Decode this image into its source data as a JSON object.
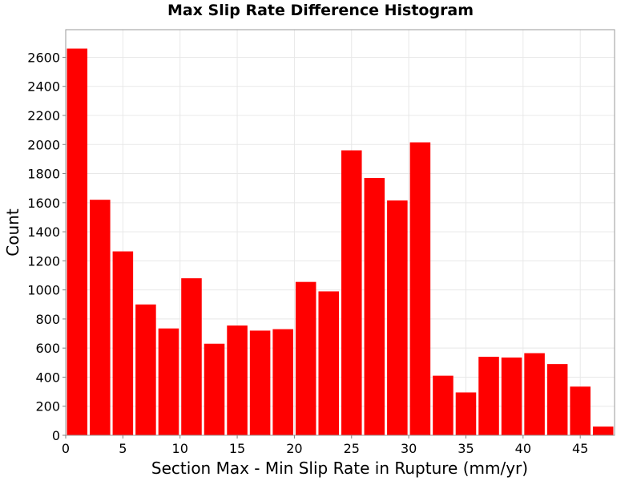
{
  "chart_data": {
    "type": "bar",
    "title": "Max Slip Rate Difference Histogram",
    "xlabel": "Section Max - Min Slip Rate in Rupture (mm/yr)",
    "ylabel": "Count",
    "xlim": [
      0,
      48
    ],
    "ylim": [
      0,
      2790
    ],
    "xticks": [
      0,
      5,
      10,
      15,
      20,
      25,
      30,
      35,
      40,
      45
    ],
    "yticks": [
      0,
      200,
      400,
      600,
      800,
      1000,
      1200,
      1400,
      1600,
      1800,
      2000,
      2200,
      2400,
      2600
    ],
    "bin_width": 2,
    "bins": [
      {
        "x0": 0,
        "x1": 2,
        "count": 2660
      },
      {
        "x0": 2,
        "x1": 4,
        "count": 1620
      },
      {
        "x0": 4,
        "x1": 6,
        "count": 1265
      },
      {
        "x0": 6,
        "x1": 8,
        "count": 900
      },
      {
        "x0": 8,
        "x1": 10,
        "count": 735
      },
      {
        "x0": 10,
        "x1": 12,
        "count": 1080
      },
      {
        "x0": 12,
        "x1": 14,
        "count": 630
      },
      {
        "x0": 14,
        "x1": 16,
        "count": 755
      },
      {
        "x0": 16,
        "x1": 18,
        "count": 720
      },
      {
        "x0": 18,
        "x1": 20,
        "count": 730
      },
      {
        "x0": 20,
        "x1": 22,
        "count": 1055
      },
      {
        "x0": 22,
        "x1": 24,
        "count": 990
      },
      {
        "x0": 24,
        "x1": 26,
        "count": 1960
      },
      {
        "x0": 26,
        "x1": 28,
        "count": 1770
      },
      {
        "x0": 28,
        "x1": 30,
        "count": 1615
      },
      {
        "x0": 30,
        "x1": 32,
        "count": 2015
      },
      {
        "x0": 32,
        "x1": 34,
        "count": 410
      },
      {
        "x0": 34,
        "x1": 36,
        "count": 295
      },
      {
        "x0": 36,
        "x1": 38,
        "count": 540
      },
      {
        "x0": 38,
        "x1": 40,
        "count": 535
      },
      {
        "x0": 40,
        "x1": 42,
        "count": 565
      },
      {
        "x0": 42,
        "x1": 44,
        "count": 490
      },
      {
        "x0": 44,
        "x1": 46,
        "count": 335
      },
      {
        "x0": 46,
        "x1": 48,
        "count": 60
      }
    ],
    "bar_color": "#ff0000",
    "grid": true,
    "legend": "none"
  }
}
